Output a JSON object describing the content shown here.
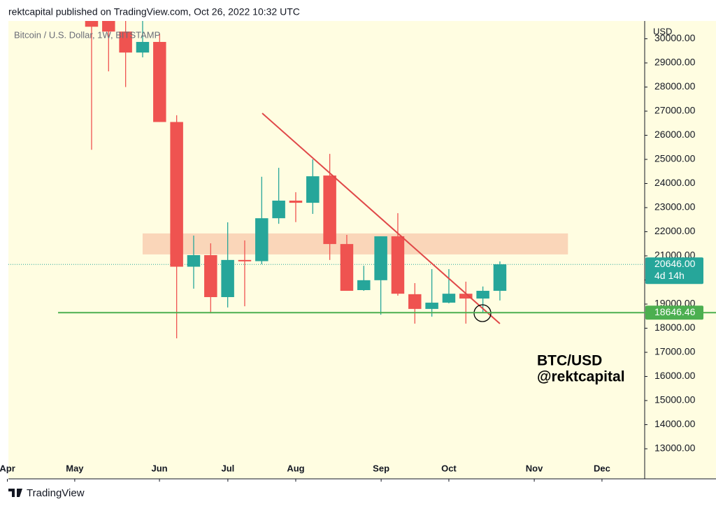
{
  "header": "rektcapital published on TradingView.com, Oct 26, 2022 10:32 UTC",
  "footer": "TradingView",
  "chart_data": {
    "type": "candlestick",
    "symbol": "Bitcoin / U.S. Dollar, 1W, BITSTAMP",
    "currency": "USD",
    "colors": {
      "up": "#26a69a",
      "down": "#ef5350"
    },
    "open": [
      31000,
      31000,
      30300,
      29430,
      29870,
      26550,
      20550,
      21030,
      19290,
      20830,
      20780,
      22560,
      23290,
      23200,
      24330,
      21490,
      19580,
      19990,
      21810,
      19410,
      18800,
      19060,
      19430,
      19230,
      19550
    ],
    "high": [
      32000,
      31200,
      30800,
      31500,
      30200,
      26830,
      21840,
      21520,
      22390,
      21640,
      24280,
      24650,
      23640,
      25000,
      25230,
      21870,
      20590,
      21810,
      22770,
      19870,
      20450,
      20450,
      19930,
      19730,
      20770
    ],
    "low": [
      25400,
      28650,
      28000,
      29230,
      26550,
      17580,
      19640,
      18620,
      18860,
      18910,
      20650,
      22330,
      22400,
      22740,
      20830,
      19550,
      19550,
      18560,
      19350,
      18190,
      18480,
      19030,
      18190,
      18650,
      19150
    ],
    "close": [
      30500,
      30300,
      29430,
      29870,
      26550,
      20550,
      21030,
      19290,
      20830,
      20780,
      22560,
      23290,
      23200,
      24300,
      21490,
      19550,
      19990,
      21810,
      19430,
      18800,
      19060,
      19430,
      19230,
      19550,
      20650
    ],
    "xlim": [
      -4.89,
      32.51
    ],
    "xticks": [
      {
        "value": -4.95,
        "label": "Apr"
      },
      {
        "value": -0.99,
        "label": "May"
      },
      {
        "value": 3.99,
        "label": "Jun"
      },
      {
        "value": 8.01,
        "label": "Jul"
      },
      {
        "value": 12.0,
        "label": "Aug"
      },
      {
        "value": 17.02,
        "label": "Sep"
      },
      {
        "value": 21.0,
        "label": "Oct"
      },
      {
        "value": 26.02,
        "label": "Nov"
      },
      {
        "value": 30.0,
        "label": "Dec"
      }
    ],
    "ylim": [
      11754,
      30739
    ],
    "yticks": [
      {
        "value": 13000,
        "label": "13000.00"
      },
      {
        "value": 14000,
        "label": "14000.00"
      },
      {
        "value": 15000,
        "label": "15000.00"
      },
      {
        "value": 16000,
        "label": "16000.00"
      },
      {
        "value": 17000,
        "label": "17000.00"
      },
      {
        "value": 18000,
        "label": "18000.00"
      },
      {
        "value": 19000,
        "label": "19000.00"
      },
      {
        "value": 20000,
        "label": "20000.00"
      },
      {
        "value": 21000,
        "label": "21000.00"
      },
      {
        "value": 22000,
        "label": "22000.00"
      },
      {
        "value": 23000,
        "label": "23000.00"
      },
      {
        "value": 24000,
        "label": "24000.00"
      },
      {
        "value": 25000,
        "label": "25000.00"
      },
      {
        "value": 26000,
        "label": "26000.00"
      },
      {
        "value": 27000,
        "label": "27000.00"
      },
      {
        "value": 28000,
        "label": "28000.00"
      },
      {
        "value": 29000,
        "label": "29000.00"
      },
      {
        "value": 30000,
        "label": "30000.00"
      }
    ],
    "zone": {
      "x": [
        3,
        28
      ],
      "y": [
        21060,
        21930
      ],
      "color": "#f9cfb2"
    },
    "trendline": {
      "x": [
        10.03,
        24
      ],
      "y": [
        26913,
        18188
      ],
      "color": "#e04848"
    },
    "support": {
      "x_start": -1.97,
      "value": 18646.46,
      "color": "#4caf50"
    },
    "last_price": {
      "value": 20646,
      "label": "20646.00"
    },
    "countdown": "4d 14h",
    "annotation": [
      "BTC/USD",
      "@rektcapital"
    ]
  }
}
